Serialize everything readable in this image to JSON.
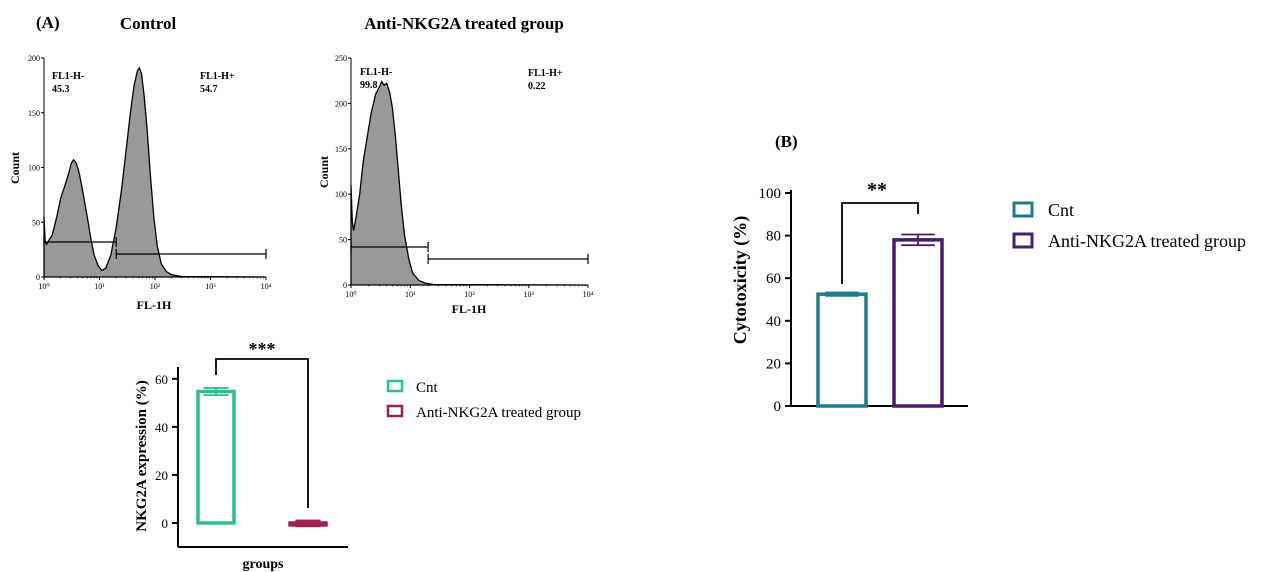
{
  "panel_a_label": "(A)",
  "panel_b_label": "(B)",
  "chart_data": [
    {
      "type": "histogram",
      "title": "Control",
      "xlabel": "FL-1H",
      "ylabel": "Count",
      "xscale": "log",
      "xlim": [
        1,
        10000
      ],
      "ylim": [
        0,
        200
      ],
      "xticks": [
        "10⁰",
        "10¹",
        "10²",
        "10³",
        "10⁴"
      ],
      "yticks": [
        "0",
        "50",
        "100",
        "150",
        "200"
      ],
      "fill_color": "#999999",
      "gates": [
        {
          "name": "FL1-H-",
          "value": "45.3",
          "range": [
            1,
            20
          ]
        },
        {
          "name": "FL1-H+",
          "value": "54.7",
          "range": [
            20,
            10000
          ]
        }
      ],
      "curve": [
        [
          1.0,
          55
        ],
        [
          1.05,
          32
        ],
        [
          1.12,
          30
        ],
        [
          1.2,
          33
        ],
        [
          1.4,
          38
        ],
        [
          1.7,
          55
        ],
        [
          2.0,
          72
        ],
        [
          2.4,
          84
        ],
        [
          2.8,
          95
        ],
        [
          3.1,
          104
        ],
        [
          3.4,
          107
        ],
        [
          3.8,
          104
        ],
        [
          4.3,
          95
        ],
        [
          5.0,
          78
        ],
        [
          6.0,
          55
        ],
        [
          7.0,
          35
        ],
        [
          8.0,
          20
        ],
        [
          9.5,
          10
        ],
        [
          11,
          6
        ],
        [
          13,
          8
        ],
        [
          16,
          20
        ],
        [
          20,
          45
        ],
        [
          25,
          80
        ],
        [
          30,
          115
        ],
        [
          36,
          150
        ],
        [
          42,
          175
        ],
        [
          48,
          188
        ],
        [
          52,
          191
        ],
        [
          57,
          186
        ],
        [
          64,
          165
        ],
        [
          72,
          135
        ],
        [
          82,
          95
        ],
        [
          95,
          55
        ],
        [
          110,
          28
        ],
        [
          130,
          12
        ],
        [
          160,
          5
        ],
        [
          200,
          2
        ],
        [
          300,
          0.5
        ],
        [
          10000,
          0
        ]
      ]
    },
    {
      "type": "histogram",
      "title": "Anti-NKG2A treated group",
      "xlabel": "FL-1H",
      "ylabel": "Count",
      "xscale": "log",
      "xlim": [
        1,
        10000
      ],
      "ylim": [
        0,
        250
      ],
      "xticks": [
        "10⁰",
        "10¹",
        "10²",
        "10³",
        "10⁴"
      ],
      "yticks": [
        "0",
        "50",
        "100",
        "150",
        "200",
        "250"
      ],
      "fill_color": "#999999",
      "gates": [
        {
          "name": "FL1-H-",
          "value": "99.8",
          "range": [
            1,
            20
          ]
        },
        {
          "name": "FL1-H+",
          "value": "0.22",
          "range": [
            20,
            10000
          ]
        }
      ],
      "curve": [
        [
          1.0,
          110
        ],
        [
          1.05,
          70
        ],
        [
          1.1,
          60
        ],
        [
          1.2,
          72
        ],
        [
          1.4,
          100
        ],
        [
          1.6,
          135
        ],
        [
          1.9,
          165
        ],
        [
          2.2,
          190
        ],
        [
          2.6,
          210
        ],
        [
          3.0,
          218
        ],
        [
          3.3,
          224
        ],
        [
          3.6,
          220
        ],
        [
          4.0,
          222
        ],
        [
          4.5,
          212
        ],
        [
          5.0,
          195
        ],
        [
          5.6,
          165
        ],
        [
          6.3,
          125
        ],
        [
          7.0,
          90
        ],
        [
          8.0,
          55
        ],
        [
          9.5,
          28
        ],
        [
          11,
          13
        ],
        [
          14,
          5
        ],
        [
          18,
          2
        ],
        [
          25,
          0.5
        ],
        [
          10000,
          0
        ]
      ]
    },
    {
      "type": "bar",
      "xlabel": "groups",
      "ylabel": "NKG2A expression (%)",
      "ylim": [
        -10,
        62
      ],
      "yticks": [
        "0",
        "20",
        "40",
        "60"
      ],
      "series": [
        {
          "name": "Cnt",
          "value": 54.7,
          "error": 1.5,
          "color": "#2ec08f"
        },
        {
          "name": "Anti-NKG2A treated group",
          "value": -0.2,
          "error": 1.2,
          "color": "#9c2253"
        }
      ],
      "significance": "***",
      "legend_position": "right"
    },
    {
      "type": "bar",
      "ylabel": "Cytotoxicity (%)",
      "ylim": [
        0,
        100
      ],
      "yticks": [
        "0",
        "20",
        "40",
        "60",
        "80",
        "100"
      ],
      "series": [
        {
          "name": "Cnt",
          "value": 52.5,
          "error": 0.8,
          "color": "#1d7d8e"
        },
        {
          "name": "Anti-NKG2A treated group",
          "value": 78,
          "error": 2.5,
          "color": "#4b1b6c"
        }
      ],
      "significance": "**",
      "legend_position": "right"
    }
  ]
}
